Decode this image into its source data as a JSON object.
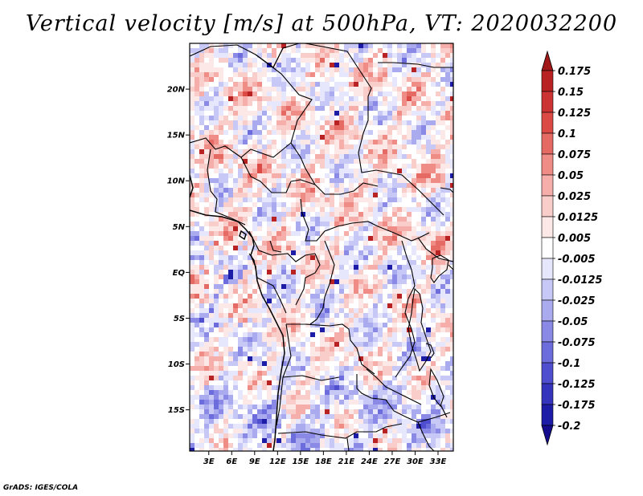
{
  "title": "Vertical velocity [m/s] at 500hPa, VT: 2020032200",
  "footer": "GrADS: IGES/COLA",
  "map": {
    "lat_ticks": [
      {
        "value": 20,
        "label": "20N"
      },
      {
        "value": 15,
        "label": "15N"
      },
      {
        "value": 10,
        "label": "10N"
      },
      {
        "value": 5,
        "label": "5N"
      },
      {
        "value": 0,
        "label": "EQ"
      },
      {
        "value": -5,
        "label": "5S"
      },
      {
        "value": -10,
        "label": "10S"
      },
      {
        "value": -15,
        "label": "15S"
      }
    ],
    "lon_ticks": [
      {
        "value": 3,
        "label": "3E"
      },
      {
        "value": 6,
        "label": "6E"
      },
      {
        "value": 9,
        "label": "9E"
      },
      {
        "value": 12,
        "label": "12E"
      },
      {
        "value": 15,
        "label": "15E"
      },
      {
        "value": 18,
        "label": "18E"
      },
      {
        "value": 21,
        "label": "21E"
      },
      {
        "value": 24,
        "label": "24E"
      },
      {
        "value": 27,
        "label": "27E"
      },
      {
        "value": 30,
        "label": "30E"
      },
      {
        "value": 33,
        "label": "33E"
      }
    ],
    "lon_range": [
      0.5,
      35
    ],
    "lat_range": [
      -19.5,
      25
    ],
    "background_color": "#ffffff"
  },
  "colorbar": {
    "labels": [
      "0.175",
      "0.15",
      "0.125",
      "0.1",
      "0.075",
      "0.05",
      "0.025",
      "0.0125",
      "0.005",
      "-0.005",
      "-0.0125",
      "-0.025",
      "-0.05",
      "-0.075",
      "-0.1",
      "-0.125",
      "-0.175",
      "-0.2"
    ],
    "colors": [
      "#a01818",
      "#b82222",
      "#cc3333",
      "#dc4a46",
      "#e66a64",
      "#ef8c86",
      "#f5aeaa",
      "#f9cdca",
      "#fce8e6",
      "#ffffff",
      "#e6e6fc",
      "#c8c8f6",
      "#aaaaef",
      "#8a8ae6",
      "#6c6cdc",
      "#4e4ece",
      "#3434bc",
      "#1c1ca6",
      "#140c8c"
    ]
  }
}
